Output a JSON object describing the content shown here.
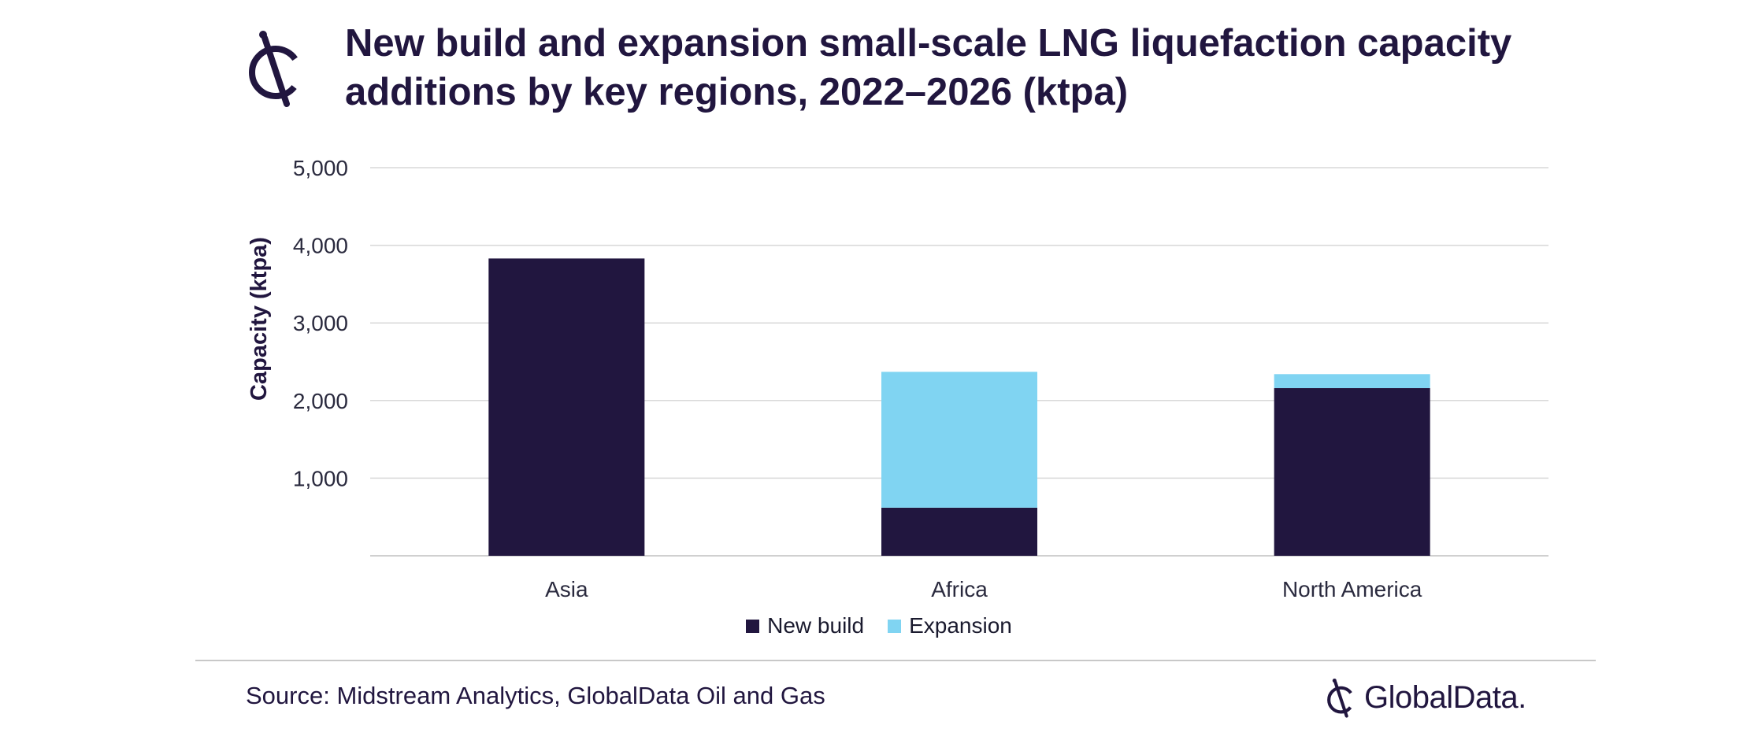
{
  "header": {
    "title_line1": "New build and expansion small-scale LNG liquefaction capacity",
    "title_line2": "additions by key regions, 2022–2026 (ktpa)"
  },
  "chart_data": {
    "type": "bar",
    "stacked": true,
    "categories": [
      "Asia",
      "Africa",
      "North America"
    ],
    "series": [
      {
        "name": "New build",
        "color": "#21163f",
        "values": [
          3830,
          620,
          2160
        ]
      },
      {
        "name": "Expansion",
        "color": "#80d4f2",
        "values": [
          0,
          1750,
          180
        ]
      }
    ],
    "ylabel": "Capacity (ktpa)",
    "ylim": [
      0,
      5000
    ],
    "yticks": [
      1000,
      2000,
      3000,
      4000,
      5000
    ],
    "ytick_labels": [
      "1,000",
      "2,000",
      "3,000",
      "4,000",
      "5,000"
    ],
    "grid": true,
    "legend_position": "bottom"
  },
  "footer": {
    "source": "Source: Midstream Analytics, GlobalData Oil and Gas",
    "brand": "GlobalData."
  },
  "icons": [
    "globaldata-logo-icon",
    "globaldata-brand-icon"
  ]
}
